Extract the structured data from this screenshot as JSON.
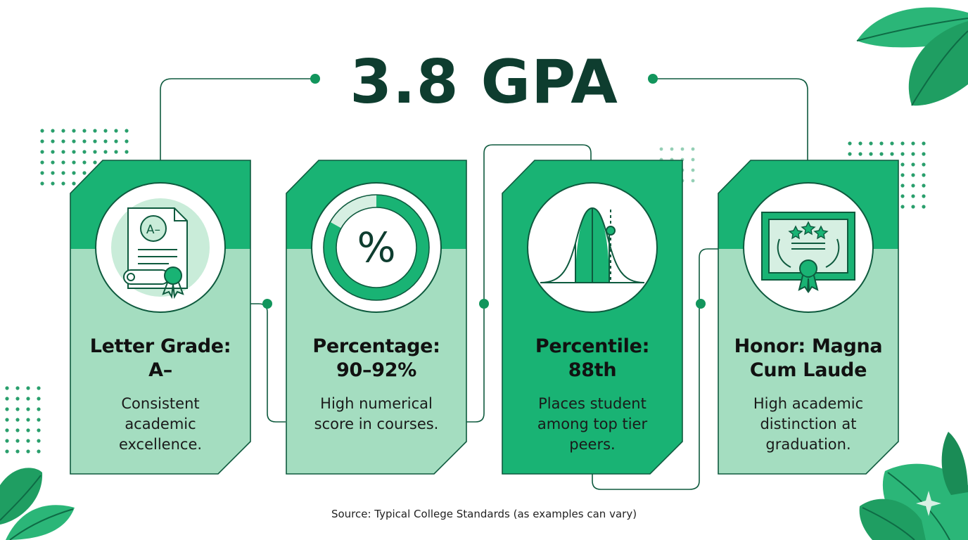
{
  "title": "3.8 GPA",
  "cards": [
    {
      "title_line1": "Letter Grade:",
      "title_line2": "A–",
      "desc_lines": [
        "Consistent",
        "academic",
        "excellence."
      ],
      "icon": "grade-document-icon",
      "badge_text": "A–"
    },
    {
      "title_line1": "Percentage:",
      "title_line2": "90–92%",
      "desc_lines": [
        "High numerical",
        "score in courses."
      ],
      "icon": "percent-ring-icon",
      "symbol": "%"
    },
    {
      "title_line1": "Percentile:",
      "title_line2": "88th",
      "desc_lines": [
        "Places student",
        "among top tier",
        "peers."
      ],
      "icon": "bell-curve-icon"
    },
    {
      "title_line1": "Honor: Magna",
      "title_line2": "Cum Laude",
      "desc_lines": [
        "High academic",
        "distinction at",
        "graduation."
      ],
      "icon": "diploma-certificate-icon"
    }
  ],
  "source": "Source: Typical College Standards (as examples can vary)",
  "colors": {
    "dark_text": "#0e3d2f",
    "card_top": "#19b374",
    "card_body": "#a4ddc0",
    "card_body_active": "#19b374",
    "outline": "#0e5a3e",
    "dot": "#12955c",
    "leaf": "#1aa867"
  }
}
